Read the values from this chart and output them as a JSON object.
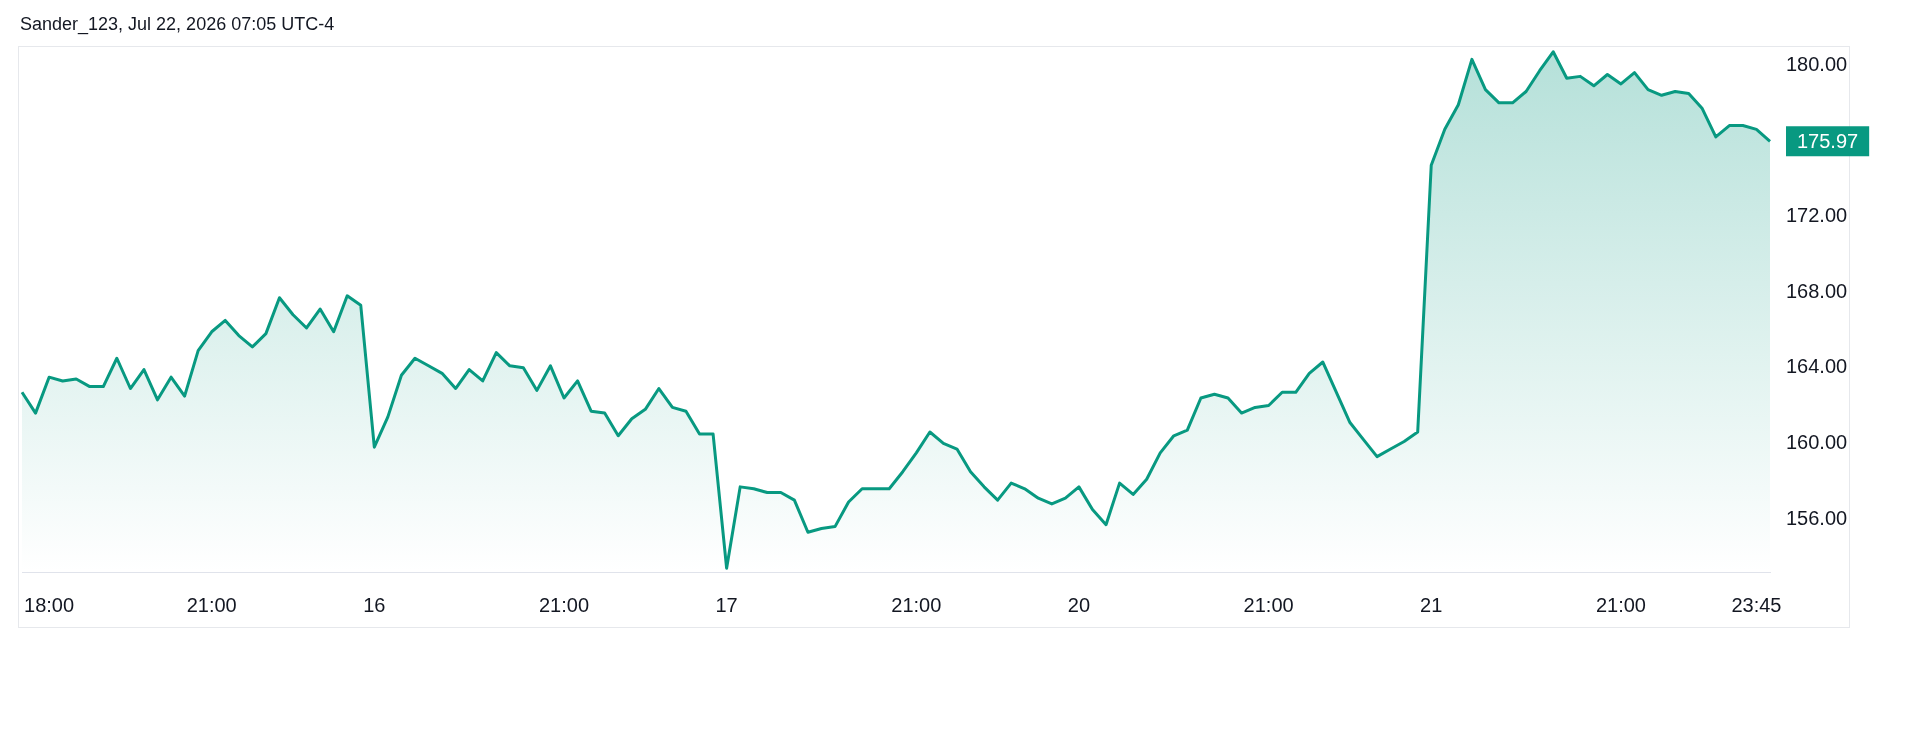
{
  "chart_data": {
    "type": "area",
    "annotations": [
      "Sander_123, Jul 22, 2026 07:05 UTC-4"
    ],
    "categories": [
      null,
      null,
      "18:00",
      null,
      null,
      null,
      null,
      null,
      null,
      null,
      null,
      null,
      null,
      null,
      "21:00",
      null,
      null,
      null,
      null,
      null,
      null,
      null,
      null,
      null,
      null,
      null,
      "16",
      null,
      null,
      null,
      null,
      null,
      null,
      null,
      null,
      null,
      null,
      null,
      null,
      null,
      "21:00",
      null,
      null,
      null,
      null,
      null,
      null,
      null,
      null,
      null,
      null,
      null,
      "17",
      null,
      null,
      null,
      null,
      null,
      null,
      null,
      null,
      null,
      null,
      null,
      null,
      null,
      "21:00",
      null,
      null,
      null,
      null,
      null,
      null,
      null,
      null,
      null,
      null,
      null,
      "20",
      null,
      null,
      null,
      null,
      null,
      null,
      null,
      null,
      null,
      null,
      null,
      null,
      null,
      "21:00",
      null,
      null,
      null,
      null,
      null,
      null,
      null,
      null,
      null,
      null,
      null,
      "21",
      null,
      null,
      null,
      null,
      null,
      null,
      null,
      null,
      null,
      null,
      null,
      null,
      null,
      "21:00",
      null,
      null,
      null,
      null,
      null,
      null,
      null,
      null,
      null,
      "23:45",
      null
    ],
    "values": [
      162.7,
      161.6,
      163.5,
      163.3,
      163.4,
      163.0,
      163.0,
      164.5,
      162.9,
      163.9,
      162.3,
      163.5,
      162.5,
      164.9,
      165.9,
      166.5,
      165.7,
      165.1,
      165.8,
      167.7,
      166.8,
      166.1,
      167.1,
      165.9,
      167.8,
      167.3,
      159.8,
      161.4,
      163.6,
      164.5,
      164.1,
      163.7,
      162.9,
      163.9,
      163.3,
      164.8,
      164.1,
      164.0,
      162.8,
      164.1,
      162.4,
      163.3,
      161.7,
      161.6,
      160.4,
      161.3,
      161.8,
      162.9,
      161.9,
      161.7,
      160.5,
      160.5,
      153.4,
      157.7,
      157.6,
      157.4,
      157.4,
      157.0,
      155.3,
      155.5,
      155.6,
      156.9,
      157.6,
      157.6,
      157.6,
      158.5,
      159.5,
      160.6,
      160.0,
      159.7,
      158.5,
      157.7,
      157.0,
      157.9,
      157.6,
      157.1,
      156.8,
      157.1,
      157.7,
      156.5,
      155.7,
      157.9,
      157.3,
      158.1,
      159.5,
      160.4,
      160.7,
      162.4,
      162.6,
      162.4,
      161.6,
      161.9,
      162.0,
      162.7,
      162.7,
      163.7,
      164.3,
      162.7,
      161.1,
      160.2,
      159.3,
      159.7,
      160.1,
      160.6,
      174.7,
      176.6,
      177.9,
      180.3,
      178.7,
      178.0,
      178.0,
      178.6,
      179.7,
      180.7,
      179.3,
      179.4,
      178.9,
      179.5,
      179.0,
      179.6,
      178.7,
      178.4,
      178.6,
      178.5,
      177.7,
      176.2,
      176.8,
      176.8,
      176.6,
      175.97
    ],
    "value_labels": [
      null,
      null,
      null,
      null,
      null,
      null,
      null,
      null,
      null,
      null,
      null,
      null,
      null,
      null,
      null,
      null,
      null,
      null,
      null,
      null,
      null,
      null,
      null,
      null,
      null,
      null,
      null,
      null,
      null,
      null,
      null,
      null,
      null,
      null,
      null,
      null,
      null,
      null,
      null,
      null,
      null,
      null,
      null,
      null,
      null,
      null,
      null,
      null,
      null,
      null,
      null,
      null,
      null,
      null,
      null,
      null,
      null,
      null,
      null,
      null,
      null,
      null,
      null,
      null,
      null,
      null,
      null,
      null,
      null,
      null,
      null,
      null,
      null,
      null,
      null,
      null,
      null,
      null,
      null,
      null,
      null,
      null,
      null,
      null,
      null,
      null,
      null,
      null,
      null,
      null,
      null,
      null,
      null,
      null,
      null,
      null,
      null,
      null,
      null,
      null,
      null,
      null,
      null,
      null,
      null,
      null,
      null,
      null,
      null,
      null,
      null,
      null,
      null,
      null,
      null,
      null,
      null,
      null,
      null,
      null,
      null,
      null,
      null,
      null,
      null,
      null,
      null,
      null,
      null,
      "175.97"
    ],
    "color": "#089981",
    "ylim": [
      153.2,
      180.9
    ],
    "yticks": [
      {
        "value": 156,
        "label": "156.00"
      },
      {
        "value": 160,
        "label": "160.00"
      },
      {
        "value": 164,
        "label": "164.00"
      },
      {
        "value": 168,
        "label": "168.00"
      },
      {
        "value": 172,
        "label": "172.00"
      },
      {
        "value": 180,
        "label": "180.00"
      }
    ],
    "marker": "none"
  }
}
